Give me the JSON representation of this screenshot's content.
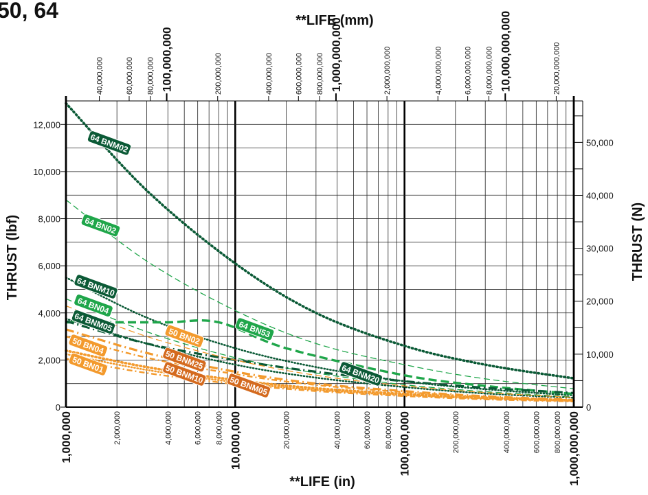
{
  "title": "50, 64",
  "chart_data": {
    "type": "line",
    "xlabel_bottom": "**LIFE (in)",
    "xlabel_top": "**LIFE (mm)",
    "ylabel_left": "THRUST (lbf)",
    "ylabel_right": "THRUST (N)",
    "xscale": "log",
    "xlim": [
      1000000,
      1000000000
    ],
    "ylim": [
      0,
      13000
    ],
    "ylim_right_N": [
      0,
      57827
    ],
    "grid": true,
    "bottom_ticks": [
      {
        "value": 1000000,
        "label": "1,000,000",
        "major": true
      },
      {
        "value": 2000000,
        "label": "2,000,000",
        "major": false
      },
      {
        "value": 4000000,
        "label": "4,000,000",
        "major": false
      },
      {
        "value": 6000000,
        "label": "6,000,000",
        "major": false
      },
      {
        "value": 8000000,
        "label": "8,000,000",
        "major": false
      },
      {
        "value": 10000000,
        "label": "10,000,000",
        "major": true
      },
      {
        "value": 20000000,
        "label": "20,000,000",
        "major": false
      },
      {
        "value": 40000000,
        "label": "40,000,000",
        "major": false
      },
      {
        "value": 60000000,
        "label": "60,000,000",
        "major": false
      },
      {
        "value": 80000000,
        "label": "80,000,000",
        "major": false
      },
      {
        "value": 100000000,
        "label": "100,000,000",
        "major": true
      },
      {
        "value": 200000000,
        "label": "200,000,000",
        "major": false
      },
      {
        "value": 400000000,
        "label": "400,000,000",
        "major": false
      },
      {
        "value": 600000000,
        "label": "600,000,000",
        "major": false
      },
      {
        "value": 800000000,
        "label": "800,000,000",
        "major": false
      },
      {
        "value": 1000000000,
        "label": "1,000,000,000",
        "major": true
      }
    ],
    "top_ticks": [
      {
        "value": 40000000,
        "label": "40,000,000",
        "major": false
      },
      {
        "value": 60000000,
        "label": "60,000,000",
        "major": false
      },
      {
        "value": 80000000,
        "label": "80,000,000",
        "major": false
      },
      {
        "value": 100000000,
        "label": "100,000,000",
        "major": true
      },
      {
        "value": 200000000,
        "label": "200,000,000",
        "major": false
      },
      {
        "value": 400000000,
        "label": "400,000,000",
        "major": false
      },
      {
        "value": 600000000,
        "label": "600,000,000",
        "major": false
      },
      {
        "value": 800000000,
        "label": "800,000,000",
        "major": false
      },
      {
        "value": 1000000000,
        "label": "1,000,000,000",
        "major": true
      },
      {
        "value": 2000000000,
        "label": "2,000,000,000",
        "major": false
      },
      {
        "value": 4000000000,
        "label": "4,000,000,000",
        "major": false
      },
      {
        "value": 6000000000,
        "label": "6,000,000,000",
        "major": false
      },
      {
        "value": 8000000000,
        "label": "8,000,000,000",
        "major": false
      },
      {
        "value": 10000000000,
        "label": "10,000,000,000",
        "major": true
      },
      {
        "value": 20000000000,
        "label": "20,000,000,000",
        "major": false
      }
    ],
    "left_ticks": [
      {
        "value": 0,
        "label": "0"
      },
      {
        "value": 2000,
        "label": "2,000"
      },
      {
        "value": 4000,
        "label": "4,000"
      },
      {
        "value": 6000,
        "label": "6,000"
      },
      {
        "value": 8000,
        "label": "8,000"
      },
      {
        "value": 10000,
        "label": "10,000"
      },
      {
        "value": 12000,
        "label": "12,000"
      }
    ],
    "right_ticks": [
      {
        "value": 0,
        "label": "0"
      },
      {
        "value": 10000,
        "label": "10,000"
      },
      {
        "value": 20000,
        "label": "20,000"
      },
      {
        "value": 30000,
        "label": "30,000"
      },
      {
        "value": 40000,
        "label": "40,000"
      },
      {
        "value": 50000,
        "label": "50,000"
      }
    ],
    "series": [
      {
        "name": "64 BNM02",
        "color": "#0b5a36",
        "style": "dotted-heavy",
        "x": [
          1000000,
          3000000,
          10000000,
          30000000,
          100000000,
          300000000,
          1000000000
        ],
        "y": [
          12900,
          9200,
          6100,
          4000,
          2600,
          1800,
          1220
        ]
      },
      {
        "name": "64 BN02",
        "color": "#1fa64a",
        "style": "dashed-thin",
        "x": [
          1000000,
          3000000,
          10000000,
          30000000,
          100000000,
          300000000,
          1000000000
        ],
        "y": [
          8800,
          6200,
          4100,
          2700,
          1800,
          1200,
          780
        ]
      },
      {
        "name": "64 BNM10",
        "color": "#0b5a36",
        "style": "dotted",
        "x": [
          1000000,
          3000000,
          10000000,
          30000000,
          100000000,
          300000000,
          1000000000
        ],
        "y": [
          5500,
          3800,
          2500,
          1700,
          1100,
          760,
          500
        ]
      },
      {
        "name": "64 BN04",
        "color": "#1fa64a",
        "style": "dashed-thin",
        "x": [
          1000000,
          3000000,
          10000000,
          30000000,
          100000000,
          300000000,
          1000000000
        ],
        "y": [
          4600,
          3200,
          2100,
          1450,
          950,
          660,
          430
        ]
      },
      {
        "name": "64 BNM05",
        "color": "#0b5a36",
        "style": "dotted",
        "x": [
          1000000,
          3000000,
          10000000,
          30000000,
          100000000,
          300000000,
          1000000000
        ],
        "y": [
          3750,
          2700,
          1800,
          1250,
          850,
          580,
          400
        ]
      },
      {
        "name": "64 BN53",
        "color": "#1fa64a",
        "style": "dash-heavy",
        "x": [
          1000000,
          2000000,
          4000000,
          8000000,
          20000000,
          100000000,
          300000000,
          1000000000
        ],
        "y": [
          3600,
          3600,
          3600,
          3600,
          2500,
          1350,
          900,
          560
        ]
      },
      {
        "name": "64 BNM20",
        "color": "#0b5a36",
        "style": "dash-dot-heavy",
        "x": [
          1000000,
          3000000,
          10000000,
          30000000,
          100000000,
          300000000,
          1000000000
        ],
        "y": [
          3650,
          2700,
          2000,
          1500,
          1100,
          820,
          600
        ]
      },
      {
        "name": "50 BN02",
        "color": "#f39a2d",
        "style": "dashed-thin",
        "x": [
          1000000,
          3000000,
          10000000,
          30000000,
          100000000,
          300000000,
          1000000000
        ],
        "y": [
          4300,
          3000,
          2000,
          1350,
          900,
          620,
          410
        ]
      },
      {
        "name": "50 BN04",
        "color": "#f39a2d",
        "style": "dash-dot-heavy",
        "x": [
          1000000,
          3000000,
          10000000,
          30000000,
          100000000,
          300000000,
          1000000000
        ],
        "y": [
          3300,
          2300,
          1500,
          1000,
          680,
          460,
          310
        ]
      },
      {
        "name": "50 BNM25",
        "color": "#f39a2d",
        "style": "dash-dot",
        "x": [
          1000000,
          3000000,
          10000000,
          30000000,
          100000000,
          300000000,
          1000000000
        ],
        "y": [
          3000,
          2100,
          1400,
          940,
          640,
          440,
          300
        ]
      },
      {
        "name": "50 BN01",
        "color": "#f39a2d",
        "style": "dotted-heavy",
        "x": [
          1000000,
          3000000,
          10000000,
          30000000,
          100000000,
          300000000,
          1000000000
        ],
        "y": [
          2400,
          1700,
          1150,
          800,
          560,
          400,
          290
        ]
      },
      {
        "name": "50 BNM10",
        "color": "#f39a2d",
        "style": "dotted",
        "x": [
          1000000,
          3000000,
          10000000,
          30000000,
          100000000,
          300000000,
          1000000000
        ],
        "y": [
          2250,
          1580,
          1060,
          730,
          510,
          360,
          260
        ]
      },
      {
        "name": "50 BNM05",
        "color": "#f39a2d",
        "style": "dash-dot",
        "x": [
          1000000,
          3000000,
          10000000,
          30000000,
          100000000,
          300000000,
          1000000000
        ],
        "y": [
          2050,
          1450,
          980,
          680,
          470,
          330,
          240
        ]
      }
    ],
    "labels": [
      {
        "text": "64 BNM02",
        "x": 1800000,
        "y": 11200,
        "fill": "#0b5a36"
      },
      {
        "text": "64 BN02",
        "x": 1600000,
        "y": 7700,
        "fill": "#1fa64a"
      },
      {
        "text": "64 BNM10",
        "x": 1500000,
        "y": 5100,
        "fill": "#0b5a36"
      },
      {
        "text": "64 BN04",
        "x": 1450000,
        "y": 4300,
        "fill": "#1fa64a"
      },
      {
        "text": "64 BNM05",
        "x": 1450000,
        "y": 3600,
        "fill": "#0b5a36"
      },
      {
        "text": "64 BN53",
        "x": 13000000,
        "y": 3300,
        "fill": "#1fa64a"
      },
      {
        "text": "64 BNM20",
        "x": 55000000,
        "y": 1400,
        "fill": "#0b5a36"
      },
      {
        "text": "50 BN02",
        "x": 5000000,
        "y": 3000,
        "fill": "#f39a2d"
      },
      {
        "text": "50 BN04",
        "x": 1350000,
        "y": 2600,
        "fill": "#f39a2d"
      },
      {
        "text": "50 BNM25",
        "x": 5000000,
        "y": 2000,
        "fill": "#d46a1e"
      },
      {
        "text": "50 BN01",
        "x": 1350000,
        "y": 1800,
        "fill": "#f39a2d"
      },
      {
        "text": "50 BNM10",
        "x": 5000000,
        "y": 1400,
        "fill": "#d46a1e"
      },
      {
        "text": "50 BNM05",
        "x": 12000000,
        "y": 900,
        "fill": "#d46a1e"
      }
    ]
  }
}
